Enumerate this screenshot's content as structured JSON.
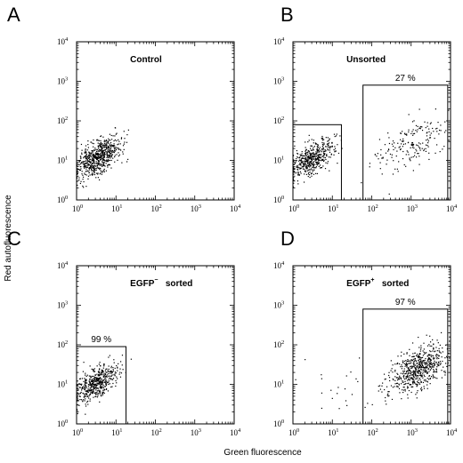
{
  "axis_labels": {
    "x": "Green fluorescence",
    "y": "Red autofluorescence"
  },
  "chart_data": [
    {
      "type": "scatter",
      "panel": "A",
      "title": "Control",
      "xscale": "log",
      "yscale": "log",
      "xlim": [
        1,
        10000
      ],
      "ylim": [
        1,
        10000
      ],
      "xticks": [
        "10^0",
        "10^1",
        "10^2",
        "10^3",
        "10^4"
      ],
      "yticks": [
        "10^0",
        "10^1",
        "10^2",
        "10^3",
        "10^4"
      ],
      "gates": [],
      "clusters": [
        {
          "center_x": 3.5,
          "center_y": 12,
          "spread_log_x": 0.28,
          "spread_log_y": 0.26,
          "correlation": 0.6,
          "count": 650
        }
      ]
    },
    {
      "type": "scatter",
      "panel": "B",
      "title": "Unsorted",
      "xscale": "log",
      "yscale": "log",
      "xlim": [
        1,
        10000
      ],
      "ylim": [
        1,
        10000
      ],
      "xticks": [
        "10^0",
        "10^1",
        "10^2",
        "10^3",
        "10^4"
      ],
      "yticks": [
        "10^0",
        "10^1",
        "10^2",
        "10^3",
        "10^4"
      ],
      "gates": [
        {
          "x": [
            1,
            17
          ],
          "y": [
            1,
            80
          ],
          "label": ""
        },
        {
          "x": [
            60,
            8500
          ],
          "y": [
            1,
            800
          ],
          "label": "27 %"
        }
      ],
      "clusters": [
        {
          "center_x": 3.0,
          "center_y": 11,
          "spread_log_x": 0.28,
          "spread_log_y": 0.25,
          "correlation": 0.6,
          "count": 480
        },
        {
          "center_x": 900,
          "center_y": 25,
          "spread_log_x": 0.45,
          "spread_log_y": 0.35,
          "correlation": 0.45,
          "count": 190
        }
      ]
    },
    {
      "type": "scatter",
      "panel": "C",
      "title_base": "EGFP",
      "title_sup": "−",
      "title_suffix": "sorted",
      "xscale": "log",
      "yscale": "log",
      "xlim": [
        1,
        10000
      ],
      "ylim": [
        1,
        10000
      ],
      "xticks": [
        "10^0",
        "10^1",
        "10^2",
        "10^3",
        "10^4"
      ],
      "yticks": [
        "10^0",
        "10^1",
        "10^2",
        "10^3",
        "10^4"
      ],
      "gates": [
        {
          "x": [
            1,
            18
          ],
          "y": [
            1,
            90
          ],
          "label": "99  %"
        }
      ],
      "clusters": [
        {
          "center_x": 3.2,
          "center_y": 11,
          "spread_log_x": 0.27,
          "spread_log_y": 0.25,
          "correlation": 0.6,
          "count": 520
        }
      ]
    },
    {
      "type": "scatter",
      "panel": "D",
      "title_base": "EGFP",
      "title_sup": "+",
      "title_suffix": "sorted",
      "xscale": "log",
      "yscale": "log",
      "xlim": [
        1,
        10000
      ],
      "ylim": [
        1,
        10000
      ],
      "xticks": [
        "10^0",
        "10^1",
        "10^2",
        "10^3",
        "10^4"
      ],
      "yticks": [
        "10^0",
        "10^1",
        "10^2",
        "10^3",
        "10^4"
      ],
      "gates": [
        {
          "x": [
            60,
            8500
          ],
          "y": [
            1,
            800
          ],
          "label": "97 %"
        }
      ],
      "clusters": [
        {
          "center_x": 1500,
          "center_y": 25,
          "spread_log_x": 0.38,
          "spread_log_y": 0.3,
          "correlation": 0.55,
          "count": 620
        },
        {
          "center_x": 12,
          "center_y": 8,
          "spread_log_x": 0.5,
          "spread_log_y": 0.4,
          "correlation": 0.0,
          "count": 22
        }
      ]
    }
  ]
}
